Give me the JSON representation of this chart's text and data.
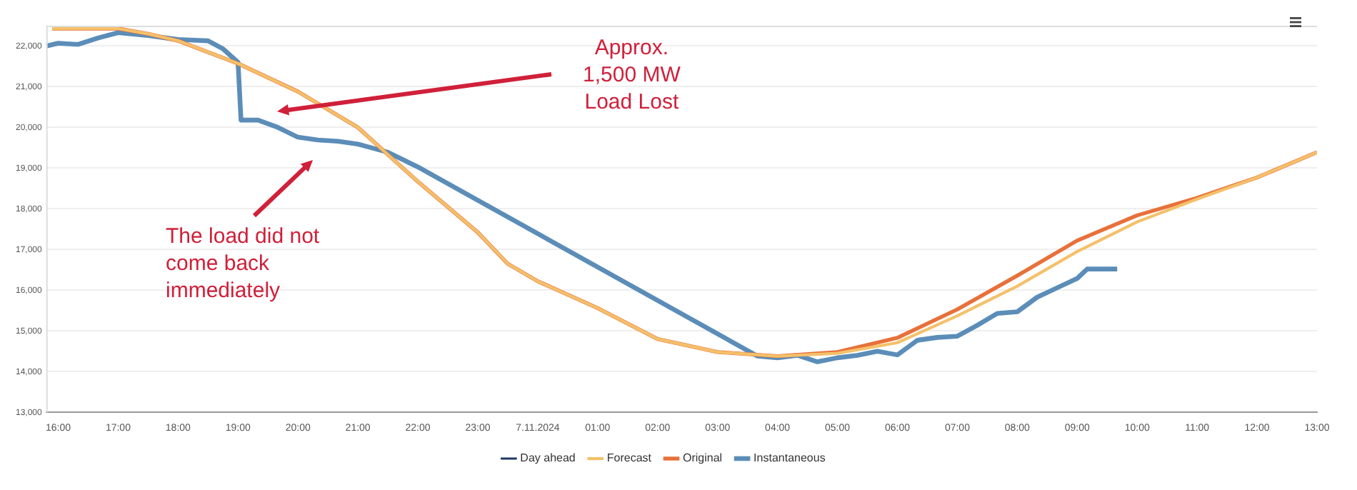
{
  "chart_data": {
    "type": "line",
    "annotations": [
      "Approx.\n1,500 MW\nLoad Lost",
      "The load did not\ncome back\nimmediately"
    ],
    "xlim": [
      "2024-11-06T15:48",
      "2024-11-07T13:00"
    ],
    "xticks": [
      {
        "value": "2024-11-06T16:00",
        "label": "16:00"
      },
      {
        "value": "2024-11-06T17:00",
        "label": "17:00"
      },
      {
        "value": "2024-11-06T18:00",
        "label": "18:00"
      },
      {
        "value": "2024-11-06T19:00",
        "label": "19:00"
      },
      {
        "value": "2024-11-06T20:00",
        "label": "20:00"
      },
      {
        "value": "2024-11-06T21:00",
        "label": "21:00"
      },
      {
        "value": "2024-11-06T22:00",
        "label": "22:00"
      },
      {
        "value": "2024-11-06T23:00",
        "label": "23:00"
      },
      {
        "value": "2024-11-07T00:00",
        "label": "7.11.2024"
      },
      {
        "value": "2024-11-07T01:00",
        "label": "01:00"
      },
      {
        "value": "2024-11-07T02:00",
        "label": "02:00"
      },
      {
        "value": "2024-11-07T03:00",
        "label": "03:00"
      },
      {
        "value": "2024-11-07T04:00",
        "label": "04:00"
      },
      {
        "value": "2024-11-07T05:00",
        "label": "05:00"
      },
      {
        "value": "2024-11-07T06:00",
        "label": "06:00"
      },
      {
        "value": "2024-11-07T07:00",
        "label": "07:00"
      },
      {
        "value": "2024-11-07T08:00",
        "label": "08:00"
      },
      {
        "value": "2024-11-07T09:00",
        "label": "09:00"
      },
      {
        "value": "2024-11-07T10:00",
        "label": "10:00"
      },
      {
        "value": "2024-11-07T11:00",
        "label": "11:00"
      },
      {
        "value": "2024-11-07T12:00",
        "label": "12:00"
      },
      {
        "value": "2024-11-07T13:00",
        "label": "13:00"
      }
    ],
    "ylim": [
      13000,
      22500
    ],
    "yticks": [
      {
        "value": 13000,
        "label": "13,000"
      },
      {
        "value": 14000,
        "label": "14,000"
      },
      {
        "value": 15000,
        "label": "15,000"
      },
      {
        "value": 16000,
        "label": "16,000"
      },
      {
        "value": 17000,
        "label": "17,000"
      },
      {
        "value": 18000,
        "label": "18,000"
      },
      {
        "value": 19000,
        "label": "19,000"
      },
      {
        "value": 20000,
        "label": "20,000"
      },
      {
        "value": 21000,
        "label": "21,000"
      },
      {
        "value": 22000,
        "label": "22,000"
      }
    ],
    "grid": "y",
    "legend": "bottom",
    "marker": "none",
    "line_style": "solid",
    "series": [
      {
        "name": "Day ahead",
        "color": "#1f3864"
      },
      {
        "name": "Forecast",
        "color": "#f4c06a",
        "x": [
          "2024-11-06T15:54",
          "2024-11-06T17:00",
          "2024-11-06T17:30",
          "2024-11-06T18:00",
          "2024-11-06T19:00",
          "2024-11-06T20:00",
          "2024-11-06T21:00",
          "2024-11-06T21:30",
          "2024-11-06T22:00",
          "2024-11-06T23:00",
          "2024-11-06T23:30",
          "2024-11-07T00:00",
          "2024-11-07T01:00",
          "2024-11-07T02:00",
          "2024-11-07T03:00",
          "2024-11-07T04:00",
          "2024-11-07T05:00",
          "2024-11-07T06:00",
          "2024-11-07T07:00",
          "2024-11-07T08:00",
          "2024-11-07T09:00",
          "2024-11-07T10:00",
          "2024-11-07T11:00",
          "2024-11-07T12:00",
          "2024-11-07T13:00"
        ],
        "values": [
          22430,
          22430,
          22300,
          22130,
          21570,
          20880,
          20000,
          19330,
          18670,
          17420,
          16650,
          16220,
          15560,
          14800,
          14480,
          14380,
          14450,
          14710,
          15370,
          16100,
          16950,
          17680,
          18240,
          18770,
          19390
        ]
      },
      {
        "name": "Original",
        "color": "#e8703a",
        "x": [
          "2024-11-06T15:54",
          "2024-11-06T17:00",
          "2024-11-06T17:30",
          "2024-11-06T18:00",
          "2024-11-06T19:00",
          "2024-11-06T20:00",
          "2024-11-06T21:00",
          "2024-11-06T21:30",
          "2024-11-06T22:00",
          "2024-11-06T23:00",
          "2024-11-06T23:30",
          "2024-11-07T00:00",
          "2024-11-07T01:00",
          "2024-11-07T02:00",
          "2024-11-07T03:00",
          "2024-11-07T04:00",
          "2024-11-07T05:00",
          "2024-11-07T06:00",
          "2024-11-07T07:00",
          "2024-11-07T08:00",
          "2024-11-07T09:00",
          "2024-11-07T10:00",
          "2024-11-07T11:00",
          "2024-11-07T12:00",
          "2024-11-07T13:00"
        ],
        "values": [
          22430,
          22430,
          22300,
          22130,
          21570,
          20880,
          20000,
          19330,
          18670,
          17420,
          16650,
          16220,
          15560,
          14800,
          14480,
          14380,
          14480,
          14830,
          15530,
          16360,
          17220,
          17840,
          18270,
          18770,
          19390
        ]
      },
      {
        "name": "Instantaneous",
        "color": "#5b8db8",
        "x": [
          "2024-11-06T15:48",
          "2024-11-06T16:00",
          "2024-11-06T16:20",
          "2024-11-06T16:40",
          "2024-11-06T17:00",
          "2024-11-06T17:30",
          "2024-11-06T18:00",
          "2024-11-06T18:30",
          "2024-11-06T18:45",
          "2024-11-06T19:00",
          "2024-11-06T19:03",
          "2024-11-06T19:20",
          "2024-11-06T19:40",
          "2024-11-06T20:00",
          "2024-11-06T20:20",
          "2024-11-06T20:40",
          "2024-11-06T21:00",
          "2024-11-06T21:30",
          "2024-11-06T22:00",
          "2024-11-07T03:40",
          "2024-11-07T04:00",
          "2024-11-07T04:20",
          "2024-11-07T04:40",
          "2024-11-07T05:00",
          "2024-11-07T05:20",
          "2024-11-07T05:40",
          "2024-11-07T06:00",
          "2024-11-07T06:20",
          "2024-11-07T06:40",
          "2024-11-07T07:00",
          "2024-11-07T07:20",
          "2024-11-07T07:40",
          "2024-11-07T08:00",
          "2024-11-07T08:20",
          "2024-11-07T08:40",
          "2024-11-07T09:00",
          "2024-11-07T09:10",
          "2024-11-07T09:20",
          "2024-11-07T09:40"
        ],
        "values": [
          22000,
          22070,
          22040,
          22200,
          22330,
          22260,
          22160,
          22130,
          21930,
          21600,
          20180,
          20180,
          20000,
          19760,
          19690,
          19660,
          19590,
          19390,
          19030,
          14380,
          14340,
          14400,
          14240,
          14340,
          14400,
          14500,
          14410,
          14770,
          14840,
          14870,
          15140,
          15430,
          15470,
          15830,
          16060,
          16290,
          16520,
          16520,
          16520
        ]
      }
    ]
  }
}
